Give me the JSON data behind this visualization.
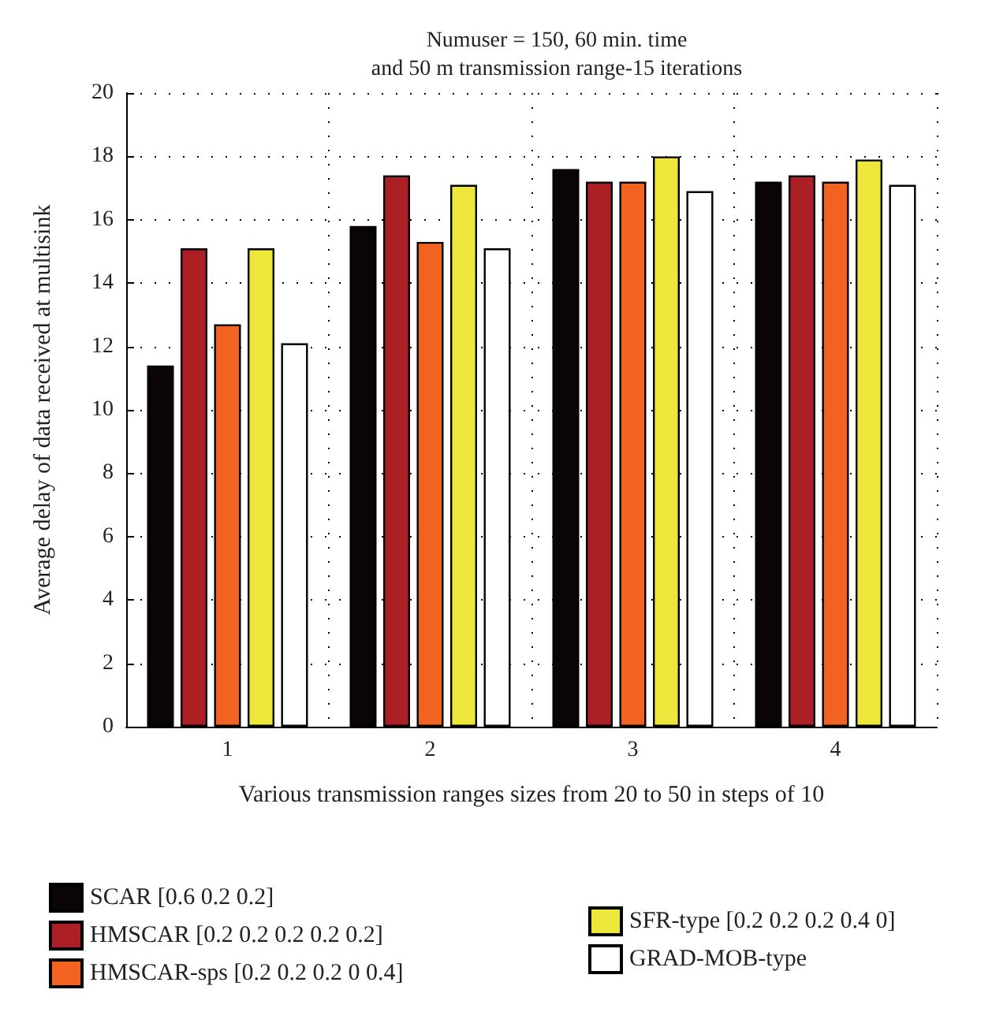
{
  "chart_data": {
    "type": "bar",
    "title": "Numuser = 150, 60 min. time\nand 50 m transmission range-15 iterations",
    "xlabel": "Various transmission ranges sizes from 20 to 50 in steps of 10",
    "ylabel": "Average delay of data received at multisink",
    "categories": [
      "1",
      "2",
      "3",
      "4"
    ],
    "series": [
      {
        "name": "SCAR [0.6 0.2 0.2]",
        "color": "#0a0405",
        "values": [
          11.4,
          15.8,
          17.6,
          17.2
        ]
      },
      {
        "name": "HMSCAR [0.2 0.2 0.2 0.2 0.2]",
        "color": "#ac1f24",
        "values": [
          15.1,
          17.4,
          17.2,
          17.4
        ]
      },
      {
        "name": "HMSCAR-sps [0.2 0.2 0.2 0 0.4]",
        "color": "#f26322",
        "values": [
          12.7,
          15.3,
          17.2,
          17.2
        ]
      },
      {
        "name": "SFR-type [0.2 0.2 0.2 0.4 0]",
        "color": "#ede73c",
        "values": [
          15.1,
          17.1,
          18.0,
          17.9
        ]
      },
      {
        "name": "GRAD-MOB-type",
        "color": "#ffffff",
        "values": [
          12.1,
          15.1,
          16.9,
          17.1
        ]
      }
    ],
    "ylim": [
      0,
      20
    ],
    "yticks": [
      0,
      2,
      4,
      6,
      8,
      10,
      12,
      14,
      16,
      18,
      20
    ],
    "grid": true,
    "legend": "bottom"
  }
}
